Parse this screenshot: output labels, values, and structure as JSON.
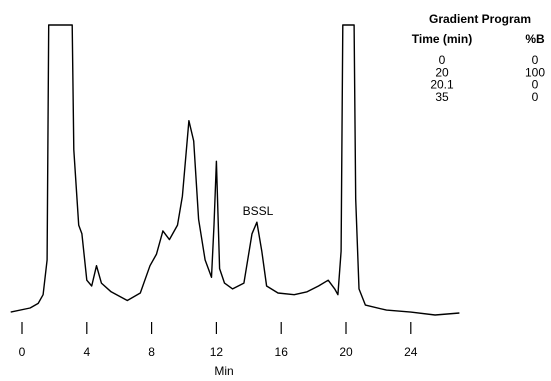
{
  "chart_data": {
    "type": "line",
    "color": "#000000",
    "x_label": "Min",
    "xlim": [
      -0.8,
      27.5
    ],
    "ylim": [
      0,
      100
    ],
    "xticks": [
      0,
      4,
      8,
      12,
      16,
      20,
      24
    ],
    "annotation": "BSSL",
    "x": [
      -0.7,
      0.5,
      1,
      1.3,
      1.55,
      1.65,
      3.1,
      3.2,
      3.5,
      3.7,
      4.0,
      4.3,
      4.6,
      4.9,
      5.5,
      6.5,
      7.3,
      7.9,
      8.3,
      8.7,
      9.1,
      9.6,
      9.9,
      10.3,
      10.6,
      10.9,
      11.3,
      11.7,
      11.85,
      12.0,
      12.2,
      12.5,
      13.0,
      13.7,
      14.2,
      14.5,
      14.8,
      15.1,
      15.8,
      16.8,
      17.6,
      18.3,
      18.9,
      19.3,
      19.5,
      19.7,
      19.8,
      20.5,
      20.6,
      20.8,
      21.2,
      22.5,
      24,
      25.5,
      27
    ],
    "values": [
      1,
      2.4,
      4,
      7,
      19,
      100,
      100,
      57,
      31,
      28,
      12,
      10,
      17,
      11,
      8,
      5,
      7.6,
      17,
      21,
      29,
      26,
      31,
      41,
      67,
      60,
      33,
      19,
      13,
      31,
      53,
      16,
      11,
      9,
      11,
      28,
      32,
      22,
      10,
      7.6,
      7,
      8,
      10,
      12,
      9,
      7,
      22,
      100,
      100,
      40,
      9,
      3.4,
      1.7,
      1,
      0,
      0.7
    ]
  },
  "gradient_table": {
    "title": "Gradient Program",
    "headers": [
      "Time (min)",
      "%B"
    ],
    "rows": [
      [
        "0",
        "0"
      ],
      [
        "20",
        "100"
      ],
      [
        "20.1",
        "0"
      ],
      [
        "35",
        "0"
      ]
    ]
  }
}
